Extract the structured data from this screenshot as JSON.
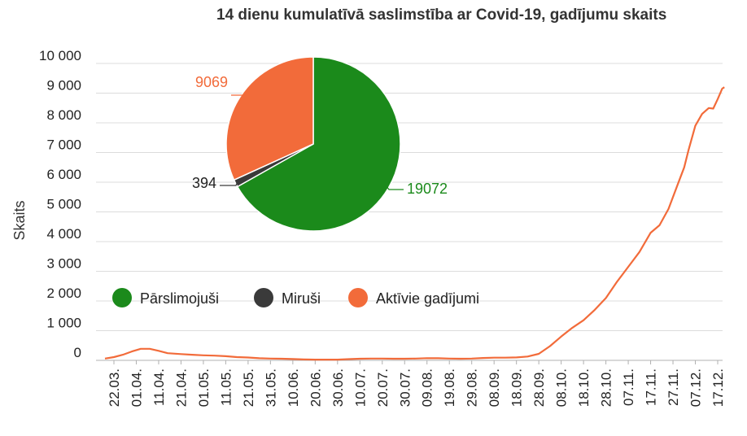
{
  "chart_data": {
    "type": "line",
    "title": "14 dienu kumulatīvā saslimstība ar Covid-19, gadījumu skaits",
    "ylabel": "Skaits",
    "xlabel": "",
    "ylim": [
      0,
      10000
    ],
    "y_ticks": [
      {
        "value": 0,
        "label": "0"
      },
      {
        "value": 1000,
        "label": "1 000"
      },
      {
        "value": 2000,
        "label": "2 000"
      },
      {
        "value": 3000,
        "label": "3 000"
      },
      {
        "value": 4000,
        "label": "4 000"
      },
      {
        "value": 5000,
        "label": "5 000"
      },
      {
        "value": 6000,
        "label": "6 000"
      },
      {
        "value": 7000,
        "label": "7 000"
      },
      {
        "value": 8000,
        "label": "8 000"
      },
      {
        "value": 9000,
        "label": "9 000"
      },
      {
        "value": 10000,
        "label": "10 000"
      }
    ],
    "grid": true,
    "x_ticks": [
      "22.03.",
      "01.04.",
      "11.04.",
      "21.04.",
      "01.05.",
      "11.05.",
      "21.05.",
      "31.05.",
      "10.06.",
      "20.06.",
      "30.06.",
      "10.07.",
      "20.07.",
      "30.07.",
      "09.08.",
      "19.08.",
      "29.08.",
      "08.09.",
      "18.09.",
      "28.09.",
      "08.10.",
      "18.10.",
      "28.10.",
      "07.11.",
      "17.11.",
      "27.11.",
      "07.12.",
      "17.12."
    ],
    "series": [
      {
        "color": "#f26b3a",
        "points": [
          [
            "2020-03-18",
            60
          ],
          [
            "2020-03-22",
            110
          ],
          [
            "2020-03-26",
            190
          ],
          [
            "2020-03-30",
            300
          ],
          [
            "2020-04-03",
            390
          ],
          [
            "2020-04-07",
            390
          ],
          [
            "2020-04-11",
            320
          ],
          [
            "2020-04-15",
            240
          ],
          [
            "2020-04-21",
            210
          ],
          [
            "2020-04-26",
            190
          ],
          [
            "2020-05-01",
            170
          ],
          [
            "2020-05-06",
            160
          ],
          [
            "2020-05-11",
            140
          ],
          [
            "2020-05-16",
            110
          ],
          [
            "2020-05-21",
            95
          ],
          [
            "2020-05-26",
            70
          ],
          [
            "2020-05-31",
            60
          ],
          [
            "2020-06-05",
            55
          ],
          [
            "2020-06-10",
            45
          ],
          [
            "2020-06-15",
            30
          ],
          [
            "2020-06-20",
            25
          ],
          [
            "2020-06-25",
            25
          ],
          [
            "2020-06-30",
            25
          ],
          [
            "2020-07-05",
            40
          ],
          [
            "2020-07-10",
            55
          ],
          [
            "2020-07-15",
            60
          ],
          [
            "2020-07-20",
            60
          ],
          [
            "2020-07-25",
            55
          ],
          [
            "2020-07-30",
            55
          ],
          [
            "2020-08-04",
            60
          ],
          [
            "2020-08-09",
            75
          ],
          [
            "2020-08-14",
            70
          ],
          [
            "2020-08-19",
            60
          ],
          [
            "2020-08-24",
            55
          ],
          [
            "2020-08-29",
            60
          ],
          [
            "2020-09-03",
            80
          ],
          [
            "2020-09-08",
            90
          ],
          [
            "2020-09-13",
            90
          ],
          [
            "2020-09-18",
            100
          ],
          [
            "2020-09-23",
            130
          ],
          [
            "2020-09-28",
            220
          ],
          [
            "2020-10-03",
            480
          ],
          [
            "2020-10-08",
            800
          ],
          [
            "2020-10-13",
            1100
          ],
          [
            "2020-10-18",
            1350
          ],
          [
            "2020-10-23",
            1700
          ],
          [
            "2020-10-28",
            2100
          ],
          [
            "2020-11-02",
            2650
          ],
          [
            "2020-11-07",
            3150
          ],
          [
            "2020-11-12",
            3650
          ],
          [
            "2020-11-17",
            4300
          ],
          [
            "2020-11-21",
            4550
          ],
          [
            "2020-11-25",
            5100
          ],
          [
            "2020-11-29",
            5900
          ],
          [
            "2020-12-02",
            6500
          ],
          [
            "2020-12-04",
            7100
          ],
          [
            "2020-12-07",
            7900
          ],
          [
            "2020-12-10",
            8300
          ],
          [
            "2020-12-13",
            8500
          ],
          [
            "2020-12-15",
            8480
          ],
          [
            "2020-12-17",
            8800
          ],
          [
            "2020-12-19",
            9150
          ],
          [
            "2020-12-20",
            9200
          ]
        ]
      }
    ],
    "inset_pie": {
      "slices": [
        {
          "label": "Pārslimojuši",
          "value": 19072,
          "value_label": "19072",
          "color": "#1b8a1b"
        },
        {
          "label": "Miruši",
          "value": 394,
          "value_label": "394",
          "color": "#3a3a3a"
        },
        {
          "label": "Aktīvie gadījumi",
          "value": 9069,
          "value_label": "9069",
          "color": "#f26b3a"
        }
      ]
    },
    "legend": "middle-left"
  }
}
